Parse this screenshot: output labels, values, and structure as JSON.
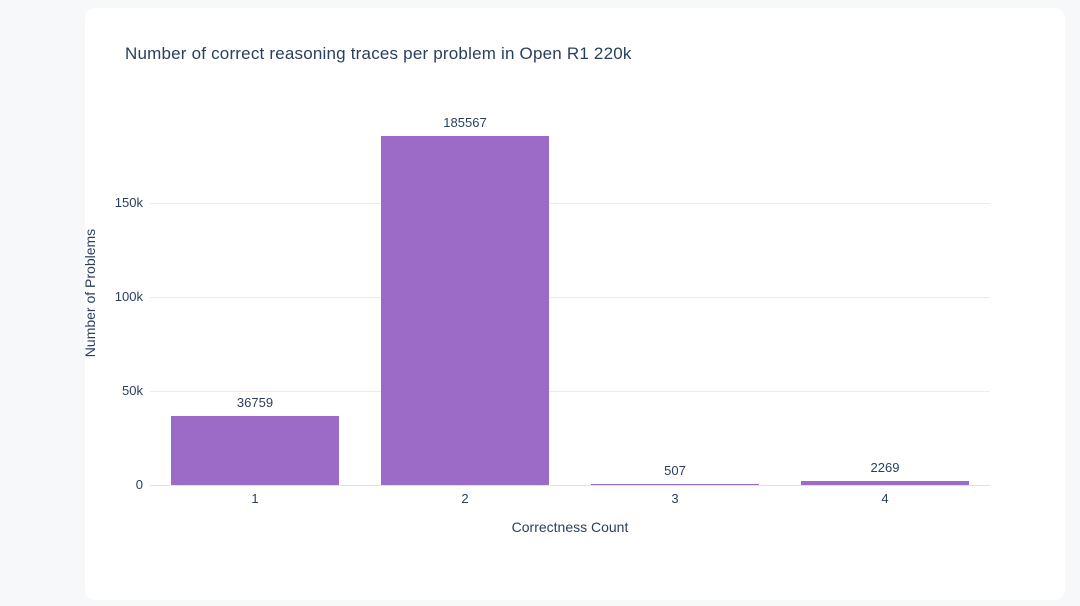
{
  "chart_data": {
    "type": "bar",
    "title": "Number of correct reasoning traces per problem in Open R1 220k",
    "xlabel": "Correctness Count",
    "ylabel": "Number of Problems",
    "categories": [
      "1",
      "2",
      "3",
      "4"
    ],
    "values": [
      36759,
      185567,
      507,
      2269
    ],
    "value_labels": [
      "36759",
      "185567",
      "507",
      "2269"
    ],
    "ylim": [
      0,
      205000
    ],
    "yticks": [
      {
        "value": 0,
        "label": "0"
      },
      {
        "value": 50000,
        "label": "50k"
      },
      {
        "value": 100000,
        "label": "100k"
      },
      {
        "value": 150000,
        "label": "150k"
      }
    ],
    "grid": "horizontal",
    "legend": "none",
    "colors": {
      "bar": "#9b6bc7",
      "text": "#2a3f5f",
      "gridline": "#ebebeb",
      "zeroline": "#e2e2e2",
      "card_background": "#ffffff",
      "page_background": "#f7f8f9"
    }
  }
}
